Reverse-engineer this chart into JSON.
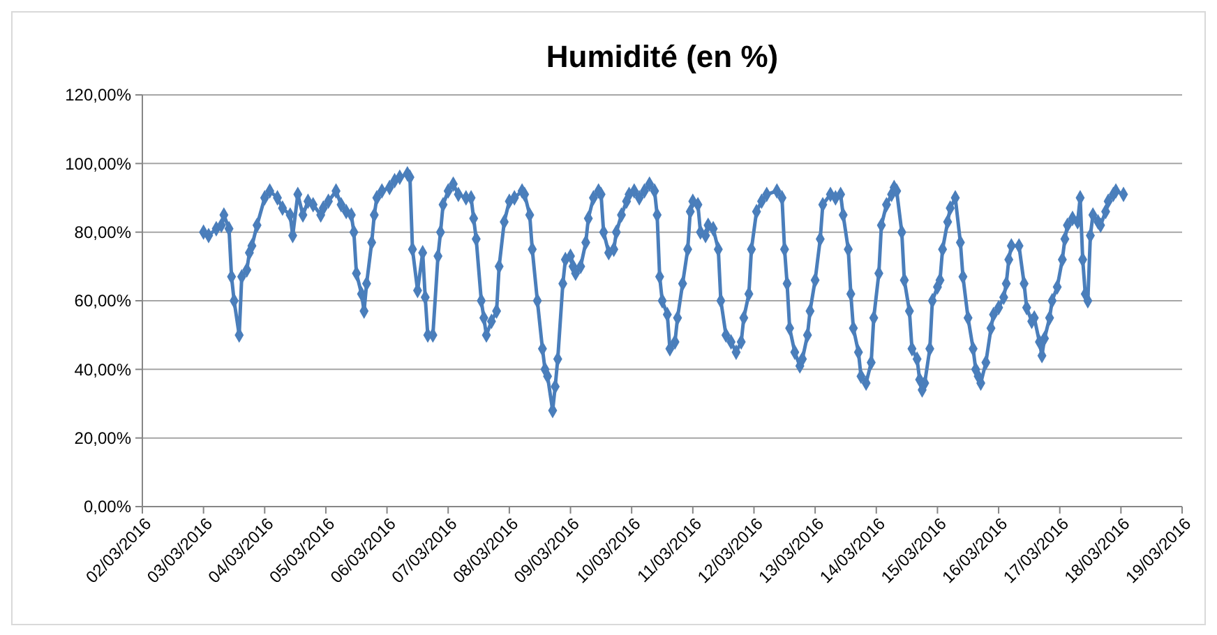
{
  "chart_data": {
    "type": "line",
    "title": "Humidité (en %)",
    "color": "#4a7ebb",
    "marker": "diamond",
    "grid": "y",
    "line_style": "solid",
    "xlim": [
      "2016-03-02",
      "2016-03-19"
    ],
    "xticks": [
      {
        "value": "2016-03-02",
        "label": "02/03/2016"
      },
      {
        "value": "2016-03-03",
        "label": "03/03/2016"
      },
      {
        "value": "2016-03-04",
        "label": "04/03/2016"
      },
      {
        "value": "2016-03-05",
        "label": "05/03/2016"
      },
      {
        "value": "2016-03-06",
        "label": "06/03/2016"
      },
      {
        "value": "2016-03-07",
        "label": "07/03/2016"
      },
      {
        "value": "2016-03-08",
        "label": "08/03/2016"
      },
      {
        "value": "2016-03-09",
        "label": "09/03/2016"
      },
      {
        "value": "2016-03-10",
        "label": "10/03/2016"
      },
      {
        "value": "2016-03-11",
        "label": "11/03/2016"
      },
      {
        "value": "2016-03-12",
        "label": "12/03/2016"
      },
      {
        "value": "2016-03-13",
        "label": "13/03/2016"
      },
      {
        "value": "2016-03-14",
        "label": "14/03/2016"
      },
      {
        "value": "2016-03-15",
        "label": "15/03/2016"
      },
      {
        "value": "2016-03-16",
        "label": "16/03/2016"
      },
      {
        "value": "2016-03-17",
        "label": "17/03/2016"
      },
      {
        "value": "2016-03-18",
        "label": "18/03/2016"
      },
      {
        "value": "2016-03-19",
        "label": "19/03/2016"
      }
    ],
    "ylim": [
      0,
      120
    ],
    "yticks": [
      {
        "value": 0,
        "label": "0,00%"
      },
      {
        "value": 20,
        "label": "20,00%"
      },
      {
        "value": 40,
        "label": "40,00%"
      },
      {
        "value": 60,
        "label": "60,00%"
      },
      {
        "value": 80,
        "label": "80,00%"
      },
      {
        "value": 100,
        "label": "100,00%"
      },
      {
        "value": 120,
        "label": "120,00%"
      }
    ],
    "x": [
      "2016-03-03T00:00",
      "2016-03-03T02:00",
      "2016-03-03T05:00",
      "2016-03-03T07:00",
      "2016-03-03T08:00",
      "2016-03-03T10:00",
      "2016-03-03T11:00",
      "2016-03-03T12:00",
      "2016-03-03T14:00",
      "2016-03-03T15:00",
      "2016-03-03T17:00",
      "2016-03-03T18:00",
      "2016-03-03T19:00",
      "2016-03-03T21:00",
      "2016-03-04T00:00",
      "2016-03-04T02:00",
      "2016-03-04T05:00",
      "2016-03-04T07:00",
      "2016-03-04T10:00",
      "2016-03-04T11:00",
      "2016-03-04T13:00",
      "2016-03-04T15:00",
      "2016-03-04T17:00",
      "2016-03-04T19:00",
      "2016-03-04T22:00",
      "2016-03-04T23:00",
      "2016-03-05T01:00",
      "2016-03-05T04:00",
      "2016-03-05T06:00",
      "2016-03-05T08:00",
      "2016-03-05T10:00",
      "2016-03-05T11:00",
      "2016-03-05T12:00",
      "2016-03-05T14:00",
      "2016-03-05T15:00",
      "2016-03-05T16:00",
      "2016-03-05T18:00",
      "2016-03-05T19:00",
      "2016-03-05T20:00",
      "2016-03-05T22:00",
      "2016-03-06T01:00",
      "2016-03-06T03:00",
      "2016-03-06T05:00",
      "2016-03-06T08:00",
      "2016-03-06T09:00",
      "2016-03-06T10:00",
      "2016-03-06T12:00",
      "2016-03-06T14:00",
      "2016-03-06T15:00",
      "2016-03-06T16:00",
      "2016-03-06T18:00",
      "2016-03-06T20:00",
      "2016-03-06T21:00",
      "2016-03-06T22:00",
      "2016-03-07T00:00",
      "2016-03-07T02:00",
      "2016-03-07T04:00",
      "2016-03-07T07:00",
      "2016-03-07T09:00",
      "2016-03-07T10:00",
      "2016-03-07T11:00",
      "2016-03-07T13:00",
      "2016-03-07T14:00",
      "2016-03-07T15:00",
      "2016-03-07T17:00",
      "2016-03-07T19:00",
      "2016-03-07T20:00",
      "2016-03-07T22:00",
      "2016-03-08T00:00",
      "2016-03-08T02:00",
      "2016-03-08T05:00",
      "2016-03-08T06:00",
      "2016-03-08T08:00",
      "2016-03-08T09:00",
      "2016-03-08T11:00",
      "2016-03-08T13:00",
      "2016-03-08T14:00",
      "2016-03-08T15:00",
      "2016-03-08T17:00",
      "2016-03-08T18:00",
      "2016-03-08T19:00",
      "2016-03-08T21:00",
      "2016-03-08T22:00",
      "2016-03-09T00:00",
      "2016-03-09T01:00",
      "2016-03-09T02:00",
      "2016-03-09T04:00",
      "2016-03-09T06:00",
      "2016-03-09T07:00",
      "2016-03-09T09:00",
      "2016-03-09T11:00",
      "2016-03-09T12:00",
      "2016-03-09T13:00",
      "2016-03-09T15:00",
      "2016-03-09T17:00",
      "2016-03-09T18:00",
      "2016-03-09T20:00",
      "2016-03-09T22:00",
      "2016-03-09T23:00",
      "2016-03-10T01:00",
      "2016-03-10T03:00",
      "2016-03-10T05:00",
      "2016-03-10T07:00",
      "2016-03-10T09:00",
      "2016-03-10T10:00",
      "2016-03-10T11:00",
      "2016-03-10T12:00",
      "2016-03-10T14:00",
      "2016-03-10T15:00",
      "2016-03-10T17:00",
      "2016-03-10T18:00",
      "2016-03-10T20:00",
      "2016-03-10T22:00",
      "2016-03-10T23:00",
      "2016-03-11T00:00",
      "2016-03-11T02:00",
      "2016-03-11T03:00",
      "2016-03-11T05:00",
      "2016-03-11T06:00",
      "2016-03-11T08:00",
      "2016-03-11T10:00",
      "2016-03-11T11:00",
      "2016-03-11T13:00",
      "2016-03-11T15:00",
      "2016-03-11T17:00",
      "2016-03-11T19:00",
      "2016-03-11T20:00",
      "2016-03-11T22:00",
      "2016-03-11T23:00",
      "2016-03-12T01:00",
      "2016-03-12T03:00",
      "2016-03-12T05:00",
      "2016-03-12T09:00",
      "2016-03-12T11:00",
      "2016-03-12T12:00",
      "2016-03-12T13:00",
      "2016-03-12T14:00",
      "2016-03-12T16:00",
      "2016-03-12T18:00",
      "2016-03-12T19:00",
      "2016-03-12T21:00",
      "2016-03-12T22:00",
      "2016-03-13T00:00",
      "2016-03-13T02:00",
      "2016-03-13T03:00",
      "2016-03-13T06:00",
      "2016-03-13T08:00",
      "2016-03-13T10:00",
      "2016-03-13T11:00",
      "2016-03-13T13:00",
      "2016-03-13T14:00",
      "2016-03-13T15:00",
      "2016-03-13T17:00",
      "2016-03-13T18:00",
      "2016-03-13T20:00",
      "2016-03-13T22:00",
      "2016-03-13T23:00",
      "2016-03-14T01:00",
      "2016-03-14T02:00",
      "2016-03-14T04:00",
      "2016-03-14T06:00",
      "2016-03-14T07:00",
      "2016-03-14T08:00",
      "2016-03-14T10:00",
      "2016-03-14T11:00",
      "2016-03-14T13:00",
      "2016-03-14T14:00",
      "2016-03-14T16:00",
      "2016-03-14T17:00",
      "2016-03-14T18:00",
      "2016-03-14T19:00",
      "2016-03-14T21:00",
      "2016-03-14T22:00",
      "2016-03-15T00:00",
      "2016-03-15T01:00",
      "2016-03-15T02:00",
      "2016-03-15T04:00",
      "2016-03-15T05:00",
      "2016-03-15T07:00",
      "2016-03-15T09:00",
      "2016-03-15T10:00",
      "2016-03-15T12:00",
      "2016-03-15T14:00",
      "2016-03-15T15:00",
      "2016-03-15T16:00",
      "2016-03-15T17:00",
      "2016-03-15T19:00",
      "2016-03-15T21:00",
      "2016-03-15T22:00",
      "2016-03-16T00:00",
      "2016-03-16T02:00",
      "2016-03-16T03:00",
      "2016-03-16T04:00",
      "2016-03-16T05:00",
      "2016-03-16T08:00",
      "2016-03-16T10:00",
      "2016-03-16T11:00",
      "2016-03-16T13:00",
      "2016-03-16T14:00",
      "2016-03-16T16:00",
      "2016-03-16T17:00",
      "2016-03-16T18:00",
      "2016-03-16T20:00",
      "2016-03-16T21:00",
      "2016-03-16T23:00",
      "2016-03-17T01:00",
      "2016-03-17T02:00",
      "2016-03-17T03:00",
      "2016-03-17T05:00",
      "2016-03-17T07:00",
      "2016-03-17T08:00",
      "2016-03-17T09:00",
      "2016-03-17T10:00",
      "2016-03-17T11:00",
      "2016-03-17T12:00",
      "2016-03-17T13:00",
      "2016-03-17T15:00",
      "2016-03-17T16:00",
      "2016-03-17T18:00",
      "2016-03-17T19:00",
      "2016-03-17T21:00",
      "2016-03-17T22:00",
      "2016-03-18T01:00"
    ],
    "values": [
      80,
      79,
      81,
      82,
      85,
      81,
      67,
      60,
      50,
      67,
      69,
      74,
      76,
      82,
      90,
      92,
      90,
      87,
      85,
      79,
      91,
      85,
      89,
      88,
      85,
      87,
      89,
      92,
      88,
      86,
      85,
      80,
      68,
      62,
      57,
      65,
      77,
      85,
      90,
      92,
      93,
      95,
      96,
      97,
      96,
      75,
      63,
      74,
      61,
      50,
      50,
      73,
      80,
      88,
      92,
      94,
      91,
      90,
      90,
      84,
      78,
      60,
      55,
      50,
      54,
      57,
      70,
      83,
      89,
      90,
      92,
      91,
      85,
      75,
      60,
      46,
      40,
      38,
      28,
      35,
      43,
      65,
      72,
      73,
      70,
      68,
      70,
      77,
      84,
      90,
      92,
      91,
      80,
      74,
      75,
      80,
      85,
      89,
      91,
      92,
      90,
      92,
      94,
      92,
      85,
      67,
      60,
      56,
      46,
      48,
      55,
      65,
      75,
      86,
      89,
      88,
      80,
      79,
      82,
      81,
      75,
      60,
      50,
      48,
      45,
      48,
      55,
      62,
      75,
      86,
      89,
      91,
      92,
      90,
      75,
      65,
      52,
      45,
      41,
      43,
      50,
      57,
      66,
      78,
      88,
      91,
      90,
      91,
      85,
      75,
      62,
      52,
      45,
      38,
      36,
      42,
      55,
      68,
      82,
      88,
      91,
      93,
      92,
      80,
      66,
      57,
      46,
      43,
      37,
      34,
      36,
      46,
      60,
      64,
      66,
      75,
      83,
      87,
      90,
      77,
      67,
      55,
      46,
      40,
      38,
      36,
      42,
      52,
      56,
      58,
      61,
      65,
      72,
      76,
      76,
      65,
      58,
      54,
      55,
      48,
      44,
      49,
      55,
      60,
      64,
      72,
      78,
      82,
      84,
      83,
      90,
      72,
      62,
      60,
      79,
      85,
      83,
      82,
      86,
      89,
      91,
      92,
      91
    ]
  }
}
